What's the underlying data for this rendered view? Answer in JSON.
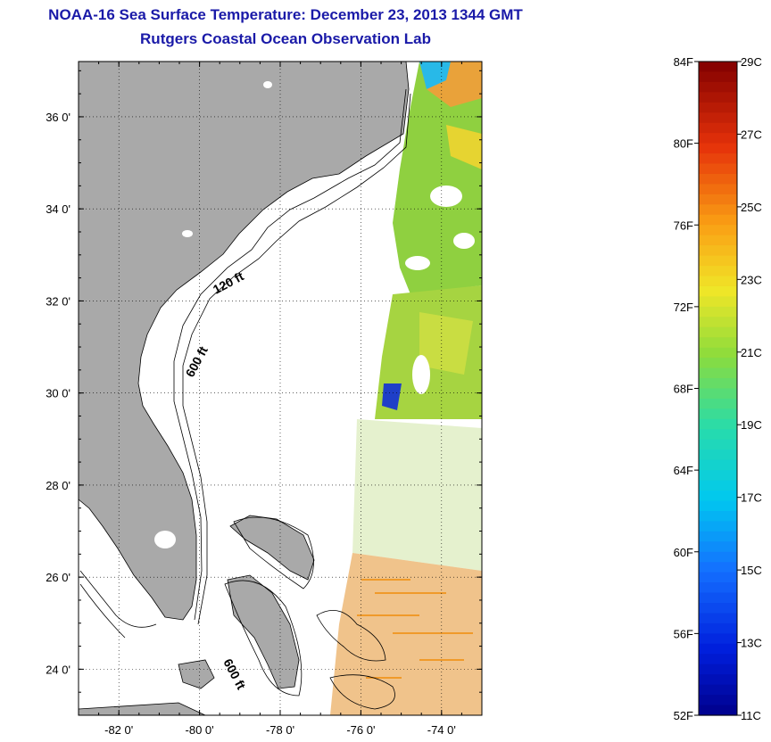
{
  "title": "NOAA-16 Sea Surface Temperature:  December 23, 2013 1344 GMT",
  "subtitle": "Rutgers Coastal Ocean Observation Lab",
  "map": {
    "lon_ticks": [
      {
        "value": -82,
        "label": "-82 0'"
      },
      {
        "value": -80,
        "label": "-80 0'"
      },
      {
        "value": -78,
        "label": "-78 0'"
      },
      {
        "value": -76,
        "label": "-76 0'"
      },
      {
        "value": -74,
        "label": "-74 0'"
      }
    ],
    "lat_ticks": [
      {
        "value": 36,
        "label": "36 0'"
      },
      {
        "value": 34,
        "label": "34 0'"
      },
      {
        "value": 32,
        "label": "32 0'"
      },
      {
        "value": 30,
        "label": "30 0'"
      },
      {
        "value": 28,
        "label": "28 0'"
      },
      {
        "value": 26,
        "label": "26 0'"
      },
      {
        "value": 24,
        "label": "24 0'"
      }
    ],
    "lon_range": [
      -83,
      -73
    ],
    "lat_range": [
      23,
      37.2
    ],
    "grid": "dotted",
    "contour_labels": [
      "120 ft",
      "600 ft",
      "600 ft"
    ],
    "land_color": "#a9a9a9"
  },
  "colorbar": {
    "fahrenheit_labels": [
      "84F",
      "80F",
      "76F",
      "72F",
      "68F",
      "64F",
      "60F",
      "56F",
      "52F"
    ],
    "celsius_labels": [
      "29C",
      "27C",
      "25C",
      "23C",
      "21C",
      "19C",
      "17C",
      "15C",
      "13C",
      "11C"
    ],
    "range_c": [
      11,
      29
    ]
  }
}
